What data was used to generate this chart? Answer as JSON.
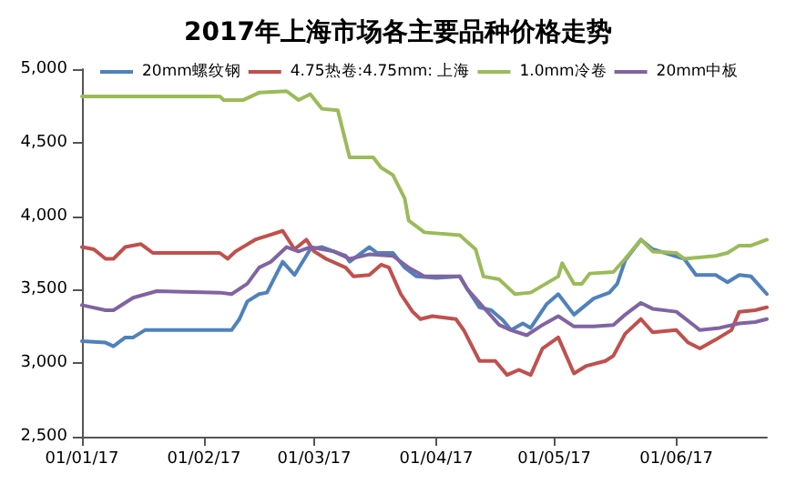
{
  "chart_data": {
    "type": "line",
    "title": "2017年上海市场各主要品种价格走势",
    "xlim": [
      "2017-01-01",
      "2017-06-24"
    ],
    "xticks": [
      {
        "value": "2017-01-01",
        "label": "01/01/17"
      },
      {
        "value": "2017-02-01",
        "label": "01/02/17"
      },
      {
        "value": "2017-03-01",
        "label": "01/03/17"
      },
      {
        "value": "2017-04-01",
        "label": "01/04/17"
      },
      {
        "value": "2017-05-01",
        "label": "01/05/17"
      },
      {
        "value": "2017-06-01",
        "label": "01/06/17"
      }
    ],
    "ylim": [
      2500,
      5000
    ],
    "yticks": [
      {
        "value": 2500,
        "label": "2,500"
      },
      {
        "value": 3000,
        "label": "3,000"
      },
      {
        "value": 3500,
        "label": "3,500"
      },
      {
        "value": 4000,
        "label": "4,000"
      },
      {
        "value": 4500,
        "label": "4,500"
      },
      {
        "value": 5000,
        "label": "5,000"
      }
    ],
    "grid": false,
    "legend": "top",
    "marker": "none",
    "line_style": "solid",
    "series": [
      {
        "name": "20mm螺纹钢",
        "color": "#4f81bd",
        "x": [
          "2017-01-01",
          "2017-01-07",
          "2017-01-09",
          "2017-01-12",
          "2017-01-14",
          "2017-01-17",
          "2017-02-08",
          "2017-02-10",
          "2017-02-12",
          "2017-02-15",
          "2017-02-17",
          "2017-02-21",
          "2017-02-24",
          "2017-02-28",
          "2017-03-03",
          "2017-03-09",
          "2017-03-10",
          "2017-03-15",
          "2017-03-17",
          "2017-03-21",
          "2017-03-24",
          "2017-03-27",
          "2017-04-01",
          "2017-04-07",
          "2017-04-09",
          "2017-04-12",
          "2017-04-15",
          "2017-04-18",
          "2017-04-20",
          "2017-04-23",
          "2017-04-25",
          "2017-04-29",
          "2017-05-02",
          "2017-05-06",
          "2017-05-11",
          "2017-05-15",
          "2017-05-17",
          "2017-05-19",
          "2017-05-23",
          "2017-05-26",
          "2017-06-03",
          "2017-06-06",
          "2017-06-11",
          "2017-06-14",
          "2017-06-17",
          "2017-06-20",
          "2017-06-24"
        ],
        "values": [
          3150,
          3140,
          3115,
          3175,
          3175,
          3225,
          3225,
          3300,
          3420,
          3470,
          3480,
          3690,
          3600,
          3775,
          3790,
          3730,
          3690,
          3790,
          3750,
          3750,
          3650,
          3590,
          3580,
          3590,
          3500,
          3380,
          3360,
          3290,
          3225,
          3270,
          3240,
          3400,
          3470,
          3330,
          3440,
          3480,
          3540,
          3700,
          3840,
          3775,
          3710,
          3600,
          3600,
          3550,
          3600,
          3590,
          3470
        ]
      },
      {
        "name": "4.75热卷:4.75mm: 上海",
        "color": "#c0504d",
        "x": [
          "2017-01-01",
          "2017-01-04",
          "2017-01-07",
          "2017-01-09",
          "2017-01-12",
          "2017-01-16",
          "2017-01-19",
          "2017-02-05",
          "2017-02-07",
          "2017-02-09",
          "2017-02-14",
          "2017-02-21",
          "2017-02-24",
          "2017-02-27",
          "2017-03-01",
          "2017-03-04",
          "2017-03-09",
          "2017-03-11",
          "2017-03-15",
          "2017-03-18",
          "2017-03-20",
          "2017-03-23",
          "2017-03-26",
          "2017-03-28",
          "2017-03-31",
          "2017-04-06",
          "2017-04-08",
          "2017-04-12",
          "2017-04-16",
          "2017-04-19",
          "2017-04-22",
          "2017-04-25",
          "2017-04-28",
          "2017-05-02",
          "2017-05-06",
          "2017-05-09",
          "2017-05-14",
          "2017-05-16",
          "2017-05-19",
          "2017-05-23",
          "2017-05-26",
          "2017-06-01",
          "2017-06-04",
          "2017-06-07",
          "2017-06-11",
          "2017-06-15",
          "2017-06-17",
          "2017-06-21",
          "2017-06-24"
        ],
        "values": [
          3790,
          3775,
          3710,
          3710,
          3790,
          3810,
          3750,
          3750,
          3710,
          3760,
          3840,
          3900,
          3775,
          3840,
          3760,
          3710,
          3650,
          3590,
          3600,
          3670,
          3650,
          3470,
          3350,
          3300,
          3320,
          3300,
          3225,
          3015,
          3015,
          2920,
          2955,
          2920,
          3100,
          3175,
          2930,
          2980,
          3015,
          3050,
          3200,
          3300,
          3210,
          3225,
          3140,
          3100,
          3160,
          3225,
          3350,
          3360,
          3380
        ]
      },
      {
        "name": "1.0mm冷卷",
        "color": "#9bbb59",
        "x": [
          "2017-01-01",
          "2017-02-05",
          "2017-02-06",
          "2017-02-11",
          "2017-02-15",
          "2017-02-22",
          "2017-02-25",
          "2017-02-28",
          "2017-03-03",
          "2017-03-07",
          "2017-03-10",
          "2017-03-16",
          "2017-03-18",
          "2017-03-21",
          "2017-03-24",
          "2017-03-25",
          "2017-03-27",
          "2017-03-29",
          "2017-04-07",
          "2017-04-11",
          "2017-04-13",
          "2017-04-17",
          "2017-04-21",
          "2017-04-25",
          "2017-05-02",
          "2017-05-03",
          "2017-05-06",
          "2017-05-08",
          "2017-05-10",
          "2017-05-16",
          "2017-05-19",
          "2017-05-23",
          "2017-05-26",
          "2017-06-01",
          "2017-06-03",
          "2017-06-11",
          "2017-06-14",
          "2017-06-17",
          "2017-06-20",
          "2017-06-24"
        ],
        "values": [
          4815,
          4815,
          4790,
          4790,
          4840,
          4850,
          4790,
          4830,
          4730,
          4720,
          4400,
          4400,
          4330,
          4280,
          4120,
          3970,
          3930,
          3890,
          3870,
          3775,
          3590,
          3570,
          3470,
          3480,
          3590,
          3680,
          3540,
          3540,
          3610,
          3620,
          3710,
          3840,
          3760,
          3750,
          3710,
          3730,
          3750,
          3800,
          3800,
          3840
        ]
      },
      {
        "name": "20mm中板",
        "color": "#8064a2",
        "x": [
          "2017-01-01",
          "2017-01-07",
          "2017-01-09",
          "2017-01-14",
          "2017-01-20",
          "2017-02-05",
          "2017-02-08",
          "2017-02-12",
          "2017-02-15",
          "2017-02-18",
          "2017-02-22",
          "2017-02-25",
          "2017-02-28",
          "2017-03-06",
          "2017-03-10",
          "2017-03-15",
          "2017-03-21",
          "2017-03-25",
          "2017-03-29",
          "2017-04-07",
          "2017-04-09",
          "2017-04-13",
          "2017-04-17",
          "2017-04-20",
          "2017-04-24",
          "2017-04-28",
          "2017-05-02",
          "2017-05-06",
          "2017-05-11",
          "2017-05-16",
          "2017-05-19",
          "2017-05-23",
          "2017-05-26",
          "2017-06-01",
          "2017-06-07",
          "2017-06-12",
          "2017-06-17",
          "2017-06-21",
          "2017-06-24"
        ],
        "values": [
          3395,
          3360,
          3360,
          3445,
          3490,
          3480,
          3470,
          3540,
          3650,
          3690,
          3790,
          3760,
          3790,
          3760,
          3710,
          3740,
          3730,
          3650,
          3590,
          3590,
          3500,
          3380,
          3260,
          3225,
          3190,
          3260,
          3320,
          3250,
          3250,
          3260,
          3330,
          3410,
          3370,
          3350,
          3225,
          3240,
          3270,
          3280,
          3300
        ]
      }
    ]
  }
}
